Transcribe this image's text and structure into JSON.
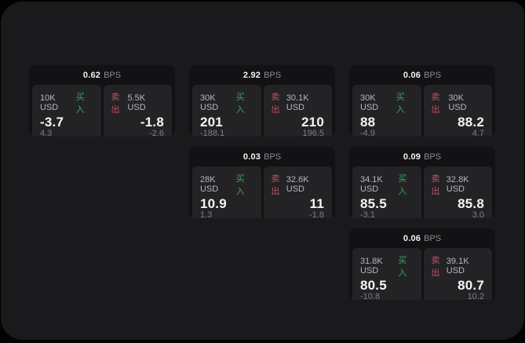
{
  "labels": {
    "bps_unit": "BPS",
    "buy": "买入",
    "sell": "卖出"
  },
  "colors": {
    "outer_background": "#020203",
    "panel_background": "#1a1a1c",
    "card_background": "#121214",
    "tile_background": "#232326",
    "buy_green": "#3da35d",
    "sell_red": "#c25062"
  },
  "cards": [
    {
      "bps": "0.62",
      "buy": {
        "size": "10K USD",
        "price": "-3.7",
        "delta": "4.3"
      },
      "sell": {
        "size": "5.5K USD",
        "price": "-1.8",
        "delta": "-2.6"
      }
    },
    {
      "bps": "2.92",
      "buy": {
        "size": "30K USD",
        "price": "201",
        "delta": "-188.1"
      },
      "sell": {
        "size": "30.1K USD",
        "price": "210",
        "delta": "196.5"
      }
    },
    {
      "bps": "0.06",
      "buy": {
        "size": "30K USD",
        "price": "88",
        "delta": "-4.9"
      },
      "sell": {
        "size": "30K USD",
        "price": "88.2",
        "delta": "4.7"
      }
    },
    {
      "bps": "0.03",
      "buy": {
        "size": "28K USD",
        "price": "10.9",
        "delta": "1.3"
      },
      "sell": {
        "size": "32.6K USD",
        "price": "11",
        "delta": "-1.8"
      }
    },
    {
      "bps": "0.09",
      "buy": {
        "size": "34.1K USD",
        "price": "85.5",
        "delta": "-3.1"
      },
      "sell": {
        "size": "32.8K USD",
        "price": "85.8",
        "delta": "3.0"
      }
    },
    {
      "bps": "0.06",
      "buy": {
        "size": "31.8K USD",
        "price": "80.5",
        "delta": "-10.8"
      },
      "sell": {
        "size": "39.1K USD",
        "price": "80.7",
        "delta": "10.2"
      }
    }
  ]
}
